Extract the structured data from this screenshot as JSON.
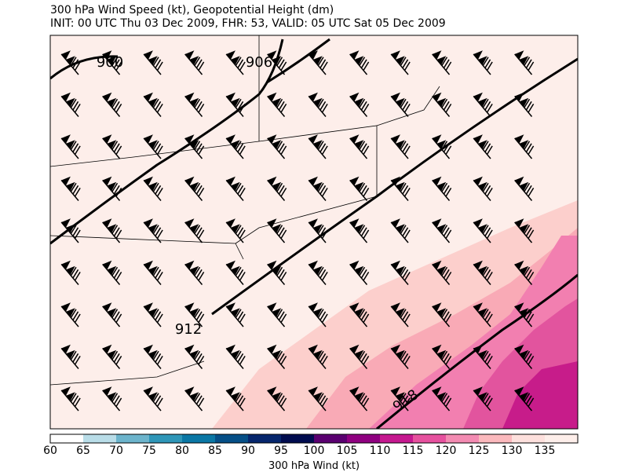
{
  "title": {
    "line1": "300 hPa Wind Speed (kt), Geopotential Height (dm)",
    "line2": "INIT: 00 UTC Thu 03 Dec 2009, FHR: 53, VALID: 05 UTC Sat 05 Dec 2009"
  },
  "contour_labels": [
    "900",
    "906",
    "912",
    "918"
  ],
  "colorbar": {
    "label": "300 hPa Wind (kt)",
    "ticks": [
      "60",
      "65",
      "70",
      "75",
      "80",
      "85",
      "90",
      "95",
      "100",
      "105",
      "110",
      "115",
      "120",
      "125",
      "130",
      "135"
    ],
    "colors": [
      "#ffffff",
      "#b9dde8",
      "#6cb4cc",
      "#2e96b8",
      "#0a77a5",
      "#054f87",
      "#06266d",
      "#000c4f",
      "#5a0070",
      "#8f0080",
      "#c5188f",
      "#e6519e",
      "#f38bb2",
      "#fbb9bd",
      "#fde0dd",
      "#fdeeea"
    ]
  },
  "shading_colors": {
    "background": "#fdeeea",
    "s125": "#fccfcc",
    "s120": "#f9aab6",
    "s115": "#f27fb0",
    "s110": "#e2549e",
    "s105": "#c71c8a"
  }
}
